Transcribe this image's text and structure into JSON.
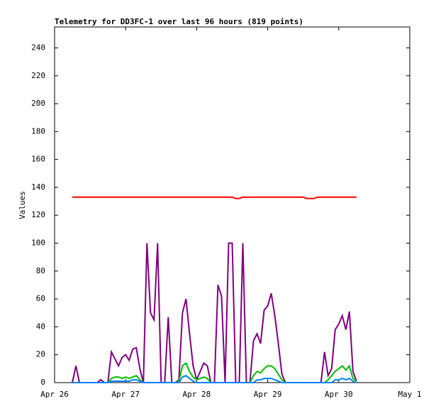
{
  "chart_data": {
    "type": "line",
    "title": "Telemetry for DD3FC-1 over last 96 hours (819 points)",
    "y_label": "Values",
    "x": [
      0.25,
      0.3,
      0.35,
      0.4,
      0.45,
      0.5,
      0.55,
      0.6,
      0.65,
      0.7,
      0.75,
      0.8,
      0.85,
      0.9,
      0.95,
      1.0,
      1.05,
      1.1,
      1.15,
      1.2,
      1.25,
      1.3,
      1.35,
      1.4,
      1.45,
      1.5,
      1.55,
      1.6,
      1.65,
      1.7,
      1.75,
      1.8,
      1.85,
      1.9,
      1.95,
      2.0,
      2.05,
      2.1,
      2.15,
      2.2,
      2.25,
      2.3,
      2.35,
      2.4,
      2.45,
      2.5,
      2.55,
      2.6,
      2.65,
      2.7,
      2.75,
      2.8,
      2.85,
      2.9,
      2.95,
      3.0,
      3.05,
      3.1,
      3.15,
      3.2,
      3.25,
      3.3,
      3.35,
      3.4,
      3.45,
      3.5,
      3.55,
      3.6,
      3.65,
      3.7,
      3.75,
      3.8,
      3.85,
      3.9,
      3.95,
      4.0,
      4.05,
      4.1,
      4.15,
      4.2,
      4.25
    ],
    "series": [
      {
        "color": "#ff0000",
        "values": [
          133,
          133,
          133,
          133,
          133,
          133,
          133,
          133,
          133,
          133,
          133,
          133,
          133,
          133,
          133,
          133,
          133,
          133,
          133,
          133,
          133,
          133,
          133,
          133,
          133,
          133,
          133,
          133,
          133,
          133,
          133,
          133,
          133,
          133,
          133,
          133,
          133,
          133,
          133,
          133,
          133,
          133,
          133,
          133,
          133,
          133,
          132,
          132,
          133,
          133,
          133,
          133,
          133,
          133,
          133,
          133,
          133,
          133,
          133,
          133,
          133,
          133,
          133,
          133,
          133,
          133,
          132,
          132,
          132,
          133,
          133,
          133,
          133,
          133,
          133,
          133,
          133,
          133,
          133,
          133,
          133
        ]
      },
      {
        "color": "#800080",
        "values": [
          0,
          12,
          0,
          0,
          0,
          0,
          0,
          0,
          2,
          0,
          0,
          22,
          17,
          12,
          18,
          20,
          16,
          24,
          25,
          10,
          0,
          100,
          50,
          45,
          100,
          0,
          0,
          47,
          0,
          0,
          2,
          50,
          60,
          35,
          12,
          2,
          8,
          14,
          12,
          0,
          0,
          70,
          62,
          0,
          100,
          100,
          0,
          0,
          100,
          0,
          0,
          30,
          35,
          28,
          52,
          55,
          64,
          48,
          28,
          6,
          0,
          0,
          0,
          0,
          0,
          0,
          0,
          0,
          0,
          0,
          0,
          22,
          5,
          10,
          38,
          42,
          48,
          38,
          51,
          8,
          1
        ]
      },
      {
        "color": "#00c000",
        "values": [
          0,
          0,
          0,
          0,
          0,
          0,
          0,
          0,
          0,
          0,
          0,
          3,
          4,
          4,
          3,
          4,
          3,
          4,
          5,
          2,
          0,
          0,
          0,
          0,
          0,
          0,
          0,
          0,
          0,
          0,
          1,
          12,
          14,
          8,
          4,
          2,
          3,
          4,
          3,
          0,
          0,
          0,
          0,
          0,
          0,
          0,
          0,
          0,
          0,
          0,
          0,
          5,
          8,
          7,
          10,
          12,
          12,
          10,
          6,
          2,
          0,
          0,
          0,
          0,
          0,
          0,
          0,
          0,
          0,
          0,
          0,
          0,
          2,
          5,
          8,
          10,
          12,
          9,
          12,
          3,
          1
        ]
      },
      {
        "color": "#0080ff",
        "values": [
          0,
          0,
          0,
          0,
          0,
          0,
          0,
          0,
          0,
          0,
          0,
          1,
          1,
          1,
          1,
          1,
          1,
          2,
          2,
          1,
          0,
          0,
          0,
          0,
          0,
          0,
          0,
          0,
          0,
          0,
          0,
          4,
          5,
          3,
          1,
          0,
          0,
          0,
          0,
          0,
          0,
          0,
          0,
          0,
          0,
          0,
          0,
          0,
          0,
          0,
          0,
          0,
          2,
          2,
          3,
          3,
          3,
          2,
          1,
          0,
          0,
          0,
          0,
          0,
          0,
          0,
          0,
          0,
          0,
          0,
          0,
          0,
          0,
          0,
          2,
          2,
          3,
          2,
          3,
          1,
          0
        ]
      }
    ],
    "xlim": [
      0,
      5
    ],
    "xticks": [
      {
        "value": 0,
        "label": "Apr 26"
      },
      {
        "value": 1,
        "label": "Apr 27"
      },
      {
        "value": 2,
        "label": "Apr 28"
      },
      {
        "value": 3,
        "label": "Apr 29"
      },
      {
        "value": 4,
        "label": "Apr 30"
      },
      {
        "value": 5,
        "label": "May 1"
      }
    ],
    "ylim": [
      0,
      255
    ],
    "yticks": [
      0,
      20,
      40,
      60,
      80,
      100,
      120,
      140,
      160,
      180,
      200,
      220,
      240
    ]
  }
}
